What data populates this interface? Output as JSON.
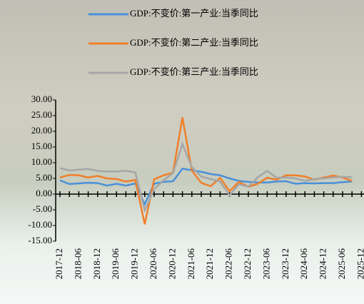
{
  "chart_data": {
    "type": "line",
    "categories": [
      "2017-12",
      null,
      "2018-06",
      null,
      "2018-12",
      null,
      "2019-06",
      null,
      "2019-12",
      null,
      "2020-06",
      null,
      "2020-12",
      null,
      "2021-06",
      null,
      "2021-12",
      null,
      "2022-06",
      null,
      "2022-12",
      null,
      "2023-06",
      null,
      "2023-12",
      null,
      "2024-06",
      null,
      "2024-12",
      null,
      "2025-06",
      null,
      "2025-12"
    ],
    "series": [
      {
        "name": "GDP:不变价:第一产业:当季同比",
        "color": "#4a90d9",
        "values": [
          4.4,
          3.2,
          3.4,
          3.6,
          3.5,
          2.7,
          3.3,
          2.7,
          3.4,
          -3.2,
          3.3,
          3.9,
          4.1,
          8.1,
          7.6,
          7.1,
          6.4,
          6.0,
          5.0,
          4.2,
          3.9,
          3.7,
          3.7,
          4.0,
          4.1,
          3.3,
          3.5,
          3.4,
          3.5,
          3.5,
          3.8,
          4.0,
          null
        ]
      },
      {
        "name": "GDP:不变价:第二产业:当季同比",
        "color": "#f07f2a",
        "values": [
          5.3,
          6.1,
          6.0,
          5.3,
          5.8,
          5.0,
          4.8,
          4.0,
          4.5,
          -9.6,
          4.7,
          6.0,
          6.8,
          24.4,
          7.5,
          3.6,
          2.5,
          5.2,
          0.9,
          3.9,
          2.3,
          3.3,
          5.2,
          4.6,
          6.0,
          6.0,
          5.6,
          4.6,
          5.3,
          5.9,
          5.3,
          4.2,
          null
        ]
      },
      {
        "name": "GDP:不变价:第三产业:当季同比",
        "color": "#a6a6a6",
        "values": [
          8.3,
          7.5,
          7.8,
          8.0,
          7.4,
          7.2,
          7.2,
          7.4,
          6.9,
          -5.2,
          1.6,
          4.4,
          6.7,
          15.9,
          8.6,
          5.6,
          4.8,
          4.0,
          -0.4,
          3.2,
          2.3,
          5.4,
          7.4,
          5.2,
          5.3,
          5.0,
          4.2,
          4.8,
          5.0,
          5.3,
          5.5,
          5.4,
          null
        ]
      }
    ],
    "ylim": [
      -15,
      30
    ],
    "yticks": [
      {
        "value": -15,
        "label": "-15.00"
      },
      {
        "value": -10,
        "label": "-10.00"
      },
      {
        "value": -5,
        "label": "-5.00"
      },
      {
        "value": 0,
        "label": "0.00"
      },
      {
        "value": 5,
        "label": "5.00"
      },
      {
        "value": 10,
        "label": "10.00"
      },
      {
        "value": 15,
        "label": "15.00"
      },
      {
        "value": 20,
        "label": "20.00"
      },
      {
        "value": 25,
        "label": "25.00"
      },
      {
        "value": 30,
        "label": "30.00"
      }
    ],
    "grid": false
  }
}
